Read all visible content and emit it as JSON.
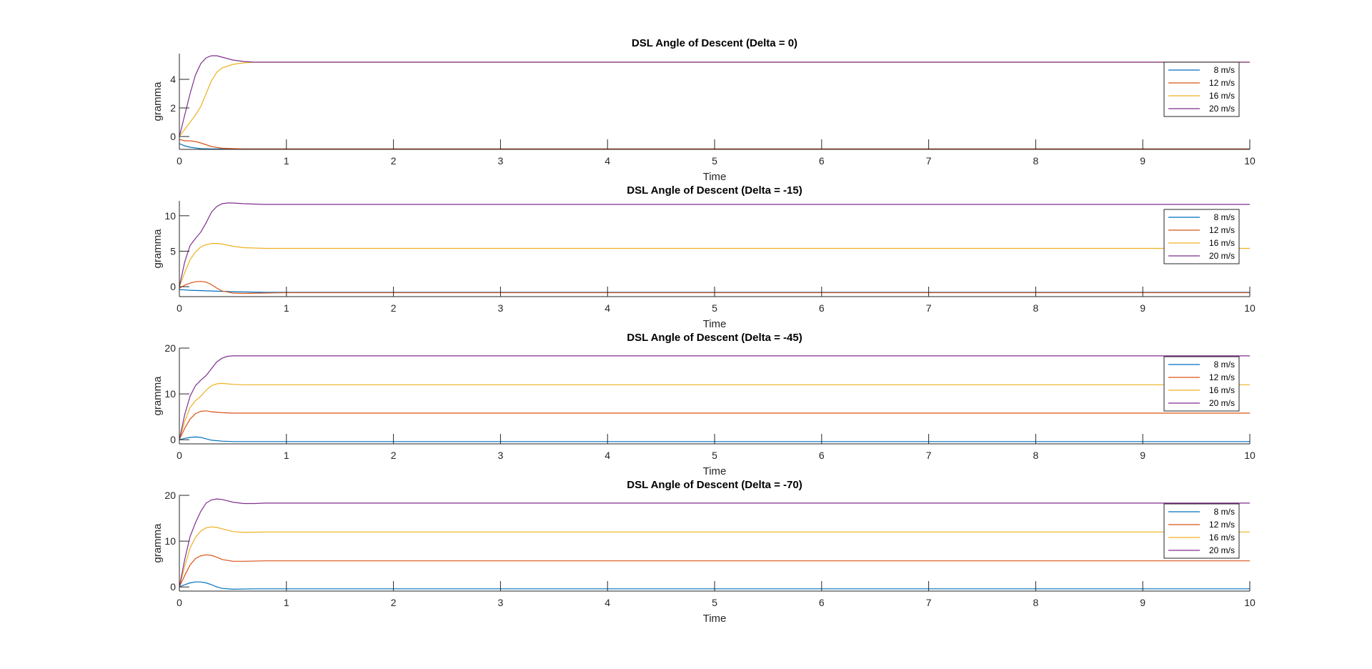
{
  "chart_data": [
    {
      "type": "line",
      "title": "DSL Angle of Descent (Delta = 0)",
      "xlabel": "Time",
      "ylabel": "gramma",
      "xlim": [
        0,
        10
      ],
      "ylim": [
        -0.9,
        5.8
      ],
      "xticks": [
        0,
        1,
        2,
        3,
        4,
        5,
        6,
        7,
        8,
        9,
        10
      ],
      "yticks": [
        0,
        2,
        4
      ],
      "legend_position": "top-right",
      "series": [
        {
          "name": "8 m/s",
          "color": "#0072BD",
          "x": [
            0,
            0.05,
            0.1,
            0.2,
            0.3,
            0.5,
            10
          ],
          "y": [
            -0.5,
            -0.65,
            -0.75,
            -0.85,
            -0.87,
            -0.87,
            -0.87
          ]
        },
        {
          "name": "12 m/s",
          "color": "#D95319",
          "x": [
            0,
            0.05,
            0.1,
            0.15,
            0.2,
            0.3,
            0.4,
            0.6,
            0.8,
            10
          ],
          "y": [
            -0.2,
            -0.3,
            -0.3,
            -0.35,
            -0.45,
            -0.7,
            -0.82,
            -0.87,
            -0.87,
            -0.87
          ]
        },
        {
          "name": "16 m/s",
          "color": "#EDB120",
          "x": [
            0,
            0.05,
            0.1,
            0.15,
            0.2,
            0.25,
            0.3,
            0.35,
            0.4,
            0.5,
            0.6,
            0.7,
            0.8,
            1,
            10
          ],
          "y": [
            0,
            0.5,
            1.0,
            1.5,
            2.1,
            3.0,
            3.9,
            4.5,
            4.8,
            5.05,
            5.15,
            5.2,
            5.2,
            5.2,
            5.2
          ]
        },
        {
          "name": "20 m/s",
          "color": "#7E2F8E",
          "x": [
            0,
            0.05,
            0.1,
            0.15,
            0.2,
            0.25,
            0.3,
            0.35,
            0.4,
            0.5,
            0.6,
            0.7,
            0.8,
            1,
            10
          ],
          "y": [
            0,
            1.5,
            3.0,
            4.3,
            5.1,
            5.5,
            5.65,
            5.65,
            5.55,
            5.35,
            5.25,
            5.2,
            5.2,
            5.2,
            5.2
          ]
        }
      ]
    },
    {
      "type": "line",
      "title": "DSL Angle of Descent (Delta = -15)",
      "xlabel": "Time",
      "ylabel": "gramma",
      "xlim": [
        0,
        10
      ],
      "ylim": [
        -1.4,
        12.1
      ],
      "xticks": [
        0,
        1,
        2,
        3,
        4,
        5,
        6,
        7,
        8,
        9,
        10
      ],
      "yticks": [
        0,
        5,
        10
      ],
      "legend_position": "top-right",
      "series": [
        {
          "name": "8 m/s",
          "color": "#0072BD",
          "x": [
            0,
            0.1,
            0.2,
            0.3,
            0.5,
            0.8,
            1,
            10
          ],
          "y": [
            -0.4,
            -0.5,
            -0.55,
            -0.6,
            -0.7,
            -0.8,
            -0.8,
            -0.8
          ]
        },
        {
          "name": "12 m/s",
          "color": "#D95319",
          "x": [
            0,
            0.05,
            0.1,
            0.15,
            0.2,
            0.25,
            0.3,
            0.35,
            0.4,
            0.5,
            0.6,
            0.8,
            1,
            10
          ],
          "y": [
            -0.2,
            0.2,
            0.5,
            0.7,
            0.75,
            0.65,
            0.3,
            -0.2,
            -0.6,
            -0.9,
            -0.95,
            -0.9,
            -0.85,
            -0.85
          ]
        },
        {
          "name": "16 m/s",
          "color": "#EDB120",
          "x": [
            0,
            0.05,
            0.1,
            0.15,
            0.2,
            0.25,
            0.3,
            0.35,
            0.4,
            0.5,
            0.6,
            0.8,
            1,
            10
          ],
          "y": [
            0,
            2.0,
            3.8,
            4.9,
            5.6,
            5.9,
            6.1,
            6.1,
            6.0,
            5.7,
            5.5,
            5.4,
            5.4,
            5.4
          ]
        },
        {
          "name": "20 m/s",
          "color": "#7E2F8E",
          "x": [
            0,
            0.05,
            0.1,
            0.15,
            0.2,
            0.25,
            0.3,
            0.35,
            0.4,
            0.45,
            0.5,
            0.6,
            0.8,
            1,
            10
          ],
          "y": [
            0,
            3.5,
            5.8,
            6.8,
            7.7,
            9.0,
            10.5,
            11.3,
            11.7,
            11.8,
            11.8,
            11.7,
            11.6,
            11.6,
            11.6
          ]
        }
      ]
    },
    {
      "type": "line",
      "title": "DSL Angle of Descent (Delta = -45)",
      "xlabel": "Time",
      "ylabel": "gramma",
      "xlim": [
        0,
        10
      ],
      "ylim": [
        -0.9,
        20
      ],
      "xticks": [
        0,
        1,
        2,
        3,
        4,
        5,
        6,
        7,
        8,
        9,
        10
      ],
      "yticks": [
        0,
        10,
        20
      ],
      "legend_position": "top-right",
      "series": [
        {
          "name": "8 m/s",
          "color": "#0072BD",
          "x": [
            0,
            0.05,
            0.1,
            0.15,
            0.2,
            0.25,
            0.3,
            0.4,
            0.5,
            0.7,
            1,
            10
          ],
          "y": [
            0,
            0.3,
            0.5,
            0.6,
            0.5,
            0.2,
            -0.1,
            -0.3,
            -0.4,
            -0.4,
            -0.4,
            -0.4
          ]
        },
        {
          "name": "12 m/s",
          "color": "#D95319",
          "x": [
            0,
            0.05,
            0.1,
            0.15,
            0.2,
            0.25,
            0.3,
            0.4,
            0.5,
            0.7,
            1,
            10
          ],
          "y": [
            0,
            2.5,
            4.5,
            5.7,
            6.2,
            6.3,
            6.1,
            5.9,
            5.8,
            5.8,
            5.8,
            5.8
          ]
        },
        {
          "name": "16 m/s",
          "color": "#EDB120",
          "x": [
            0,
            0.05,
            0.1,
            0.15,
            0.2,
            0.25,
            0.3,
            0.35,
            0.4,
            0.5,
            0.6,
            0.8,
            1,
            10
          ],
          "y": [
            0,
            4.0,
            7.0,
            8.5,
            9.5,
            10.8,
            11.8,
            12.2,
            12.3,
            12.1,
            12.0,
            12.0,
            12.0,
            12.0
          ]
        },
        {
          "name": "20 m/s",
          "color": "#7E2F8E",
          "x": [
            0,
            0.05,
            0.1,
            0.15,
            0.2,
            0.25,
            0.3,
            0.35,
            0.4,
            0.45,
            0.5,
            0.6,
            0.8,
            1,
            10
          ],
          "y": [
            0,
            5.5,
            9.5,
            11.8,
            13.0,
            14.0,
            15.5,
            17.0,
            17.8,
            18.2,
            18.3,
            18.3,
            18.3,
            18.3,
            18.3
          ]
        }
      ]
    },
    {
      "type": "line",
      "title": "DSL Angle of Descent (Delta = -70)",
      "xlabel": "Time",
      "ylabel": "gramma",
      "xlim": [
        0,
        10
      ],
      "ylim": [
        -0.9,
        20
      ],
      "xticks": [
        0,
        1,
        2,
        3,
        4,
        5,
        6,
        7,
        8,
        9,
        10
      ],
      "yticks": [
        0,
        10,
        20
      ],
      "legend_position": "top-right",
      "series": [
        {
          "name": "8 m/s",
          "color": "#0072BD",
          "x": [
            0,
            0.05,
            0.1,
            0.15,
            0.2,
            0.25,
            0.3,
            0.35,
            0.4,
            0.5,
            0.7,
            1,
            10
          ],
          "y": [
            0,
            0.5,
            0.9,
            1.1,
            1.1,
            0.9,
            0.5,
            0.0,
            -0.3,
            -0.5,
            -0.4,
            -0.4,
            -0.4
          ]
        },
        {
          "name": "12 m/s",
          "color": "#D95319",
          "x": [
            0,
            0.05,
            0.1,
            0.15,
            0.2,
            0.25,
            0.3,
            0.35,
            0.4,
            0.5,
            0.6,
            0.8,
            1,
            10
          ],
          "y": [
            0,
            2.5,
            4.8,
            6.2,
            6.8,
            7.0,
            6.9,
            6.5,
            6.0,
            5.6,
            5.6,
            5.7,
            5.7,
            5.7
          ]
        },
        {
          "name": "16 m/s",
          "color": "#EDB120",
          "x": [
            0,
            0.05,
            0.1,
            0.15,
            0.2,
            0.25,
            0.3,
            0.35,
            0.4,
            0.5,
            0.6,
            0.8,
            1,
            10
          ],
          "y": [
            0,
            4.5,
            8.5,
            10.8,
            12.2,
            12.9,
            13.1,
            13.0,
            12.7,
            12.1,
            11.9,
            12.0,
            12.0,
            12.0
          ]
        },
        {
          "name": "20 m/s",
          "color": "#7E2F8E",
          "x": [
            0,
            0.05,
            0.1,
            0.15,
            0.2,
            0.25,
            0.3,
            0.35,
            0.4,
            0.45,
            0.5,
            0.6,
            0.7,
            0.8,
            1,
            10
          ],
          "y": [
            0,
            6.0,
            11.0,
            14.0,
            16.5,
            18.3,
            19.0,
            19.2,
            19.1,
            18.8,
            18.5,
            18.2,
            18.2,
            18.3,
            18.3,
            18.3
          ]
        }
      ]
    }
  ]
}
